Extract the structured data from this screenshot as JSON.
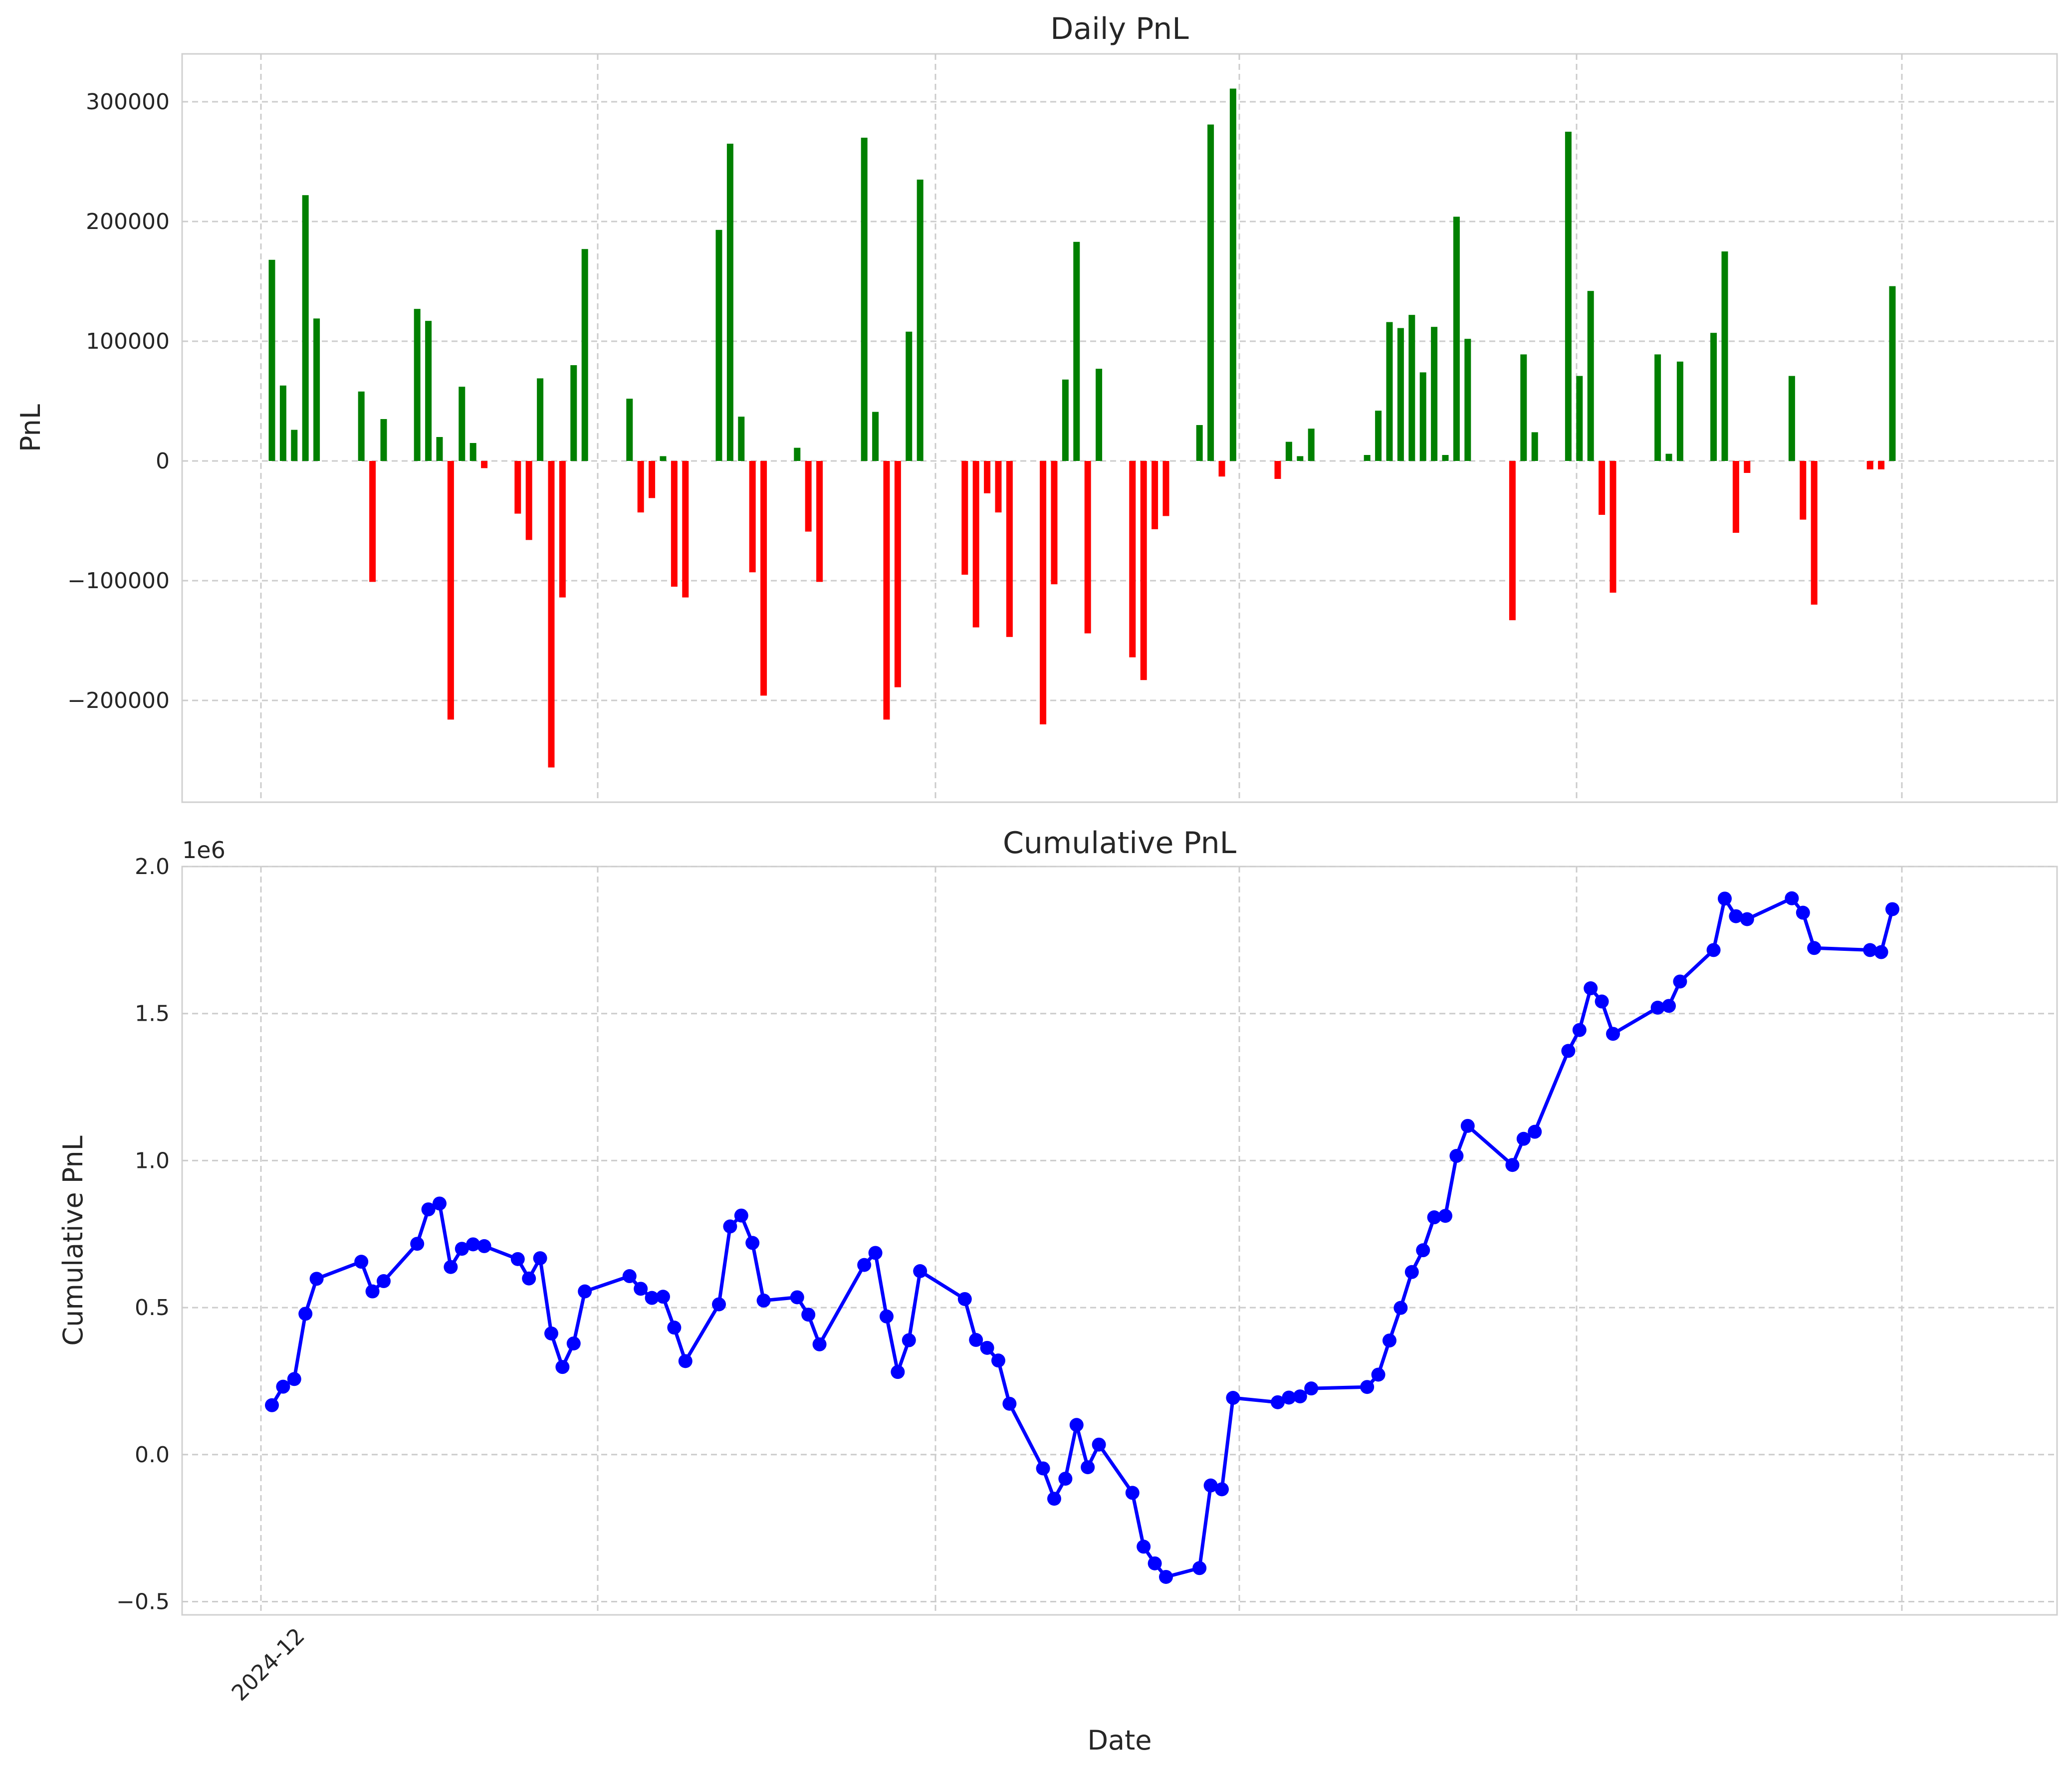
{
  "chart_data": [
    {
      "type": "bar",
      "title": "Daily PnL",
      "xlabel": "",
      "ylabel": "PnL",
      "ylim": [
        -285000,
        340000
      ],
      "yticks": [
        300000,
        200000,
        100000,
        0,
        -100000,
        -200000
      ],
      "ytick_labels": [
        "300000",
        "200000",
        "100000",
        "0",
        "−100000",
        "−200000"
      ],
      "grid": true,
      "positive_color": "#008000",
      "negative_color": "#ff0000",
      "values": [
        168000,
        63000,
        26000,
        222000,
        119000,
        58000,
        -101000,
        35000,
        127000,
        117000,
        20000,
        -216000,
        62000,
        15000,
        -6000,
        -44000,
        -66000,
        69000,
        -256000,
        -114000,
        80000,
        177000,
        52000,
        -43000,
        -31000,
        4000,
        -105000,
        -114000,
        193000,
        265000,
        37000,
        -93000,
        -196000,
        11000,
        -59000,
        -101000,
        270000,
        41000,
        -216000,
        -189000,
        108000,
        235000,
        -95000,
        -139000,
        -27000,
        -43000,
        -147000,
        -220000,
        -103000,
        68000,
        183000,
        -144000,
        77000,
        -164000,
        -183000,
        -57000,
        -46000,
        30000,
        281000,
        -13000,
        311000,
        -15000,
        16000,
        4000,
        27000,
        5000,
        42000,
        116000,
        111000,
        122000,
        74000,
        112000,
        5000,
        204000,
        102000,
        -133000,
        89000,
        24000,
        275000,
        71000,
        142000,
        -45000,
        -110000,
        89000,
        6000,
        83000,
        107000,
        175000,
        -60000,
        -10000,
        71000,
        -49000,
        -120000,
        -7000,
        -7000,
        146000
      ]
    },
    {
      "type": "line",
      "title": "Cumulative PnL",
      "xlabel": "Date",
      "ylabel": "Cumulative PnL",
      "y_offset_label": "1e6",
      "ylim": [
        -0.545,
        2.0
      ],
      "yticks": [
        2.0,
        1.5,
        1.0,
        0.5,
        0.0,
        -0.5
      ],
      "ytick_labels": [
        "2.0",
        "1.5",
        "1.0",
        "0.5",
        "0.0",
        "−0.5"
      ],
      "x_tick_labels": [
        "2024-12"
      ],
      "grid": true,
      "line_color": "#0000ff",
      "marker": "circle",
      "values": [
        0.168,
        0.231,
        0.257,
        0.479,
        0.598,
        0.656,
        0.555,
        0.59,
        0.717,
        0.834,
        0.854,
        0.638,
        0.7,
        0.715,
        0.709,
        0.665,
        0.599,
        0.668,
        0.412,
        0.298,
        0.378,
        0.555,
        0.607,
        0.564,
        0.533,
        0.537,
        0.432,
        0.318,
        0.511,
        0.776,
        0.813,
        0.72,
        0.524,
        0.535,
        0.476,
        0.375,
        0.645,
        0.686,
        0.47,
        0.281,
        0.389,
        0.624,
        0.529,
        0.39,
        0.363,
        0.32,
        0.173,
        -0.047,
        -0.15,
        -0.082,
        0.101,
        -0.043,
        0.034,
        -0.13,
        -0.313,
        -0.37,
        -0.416,
        -0.386,
        -0.105,
        -0.118,
        0.193,
        0.178,
        0.194,
        0.198,
        0.225,
        0.23,
        0.272,
        0.388,
        0.499,
        0.621,
        0.695,
        0.807,
        0.812,
        1.016,
        1.118,
        0.985,
        1.074,
        1.098,
        1.373,
        1.444,
        1.586,
        1.541,
        1.431,
        1.52,
        1.526,
        1.609,
        1.716,
        1.891,
        1.831,
        1.821,
        1.892,
        1.843,
        1.723,
        1.716,
        1.709,
        1.855
      ]
    }
  ]
}
